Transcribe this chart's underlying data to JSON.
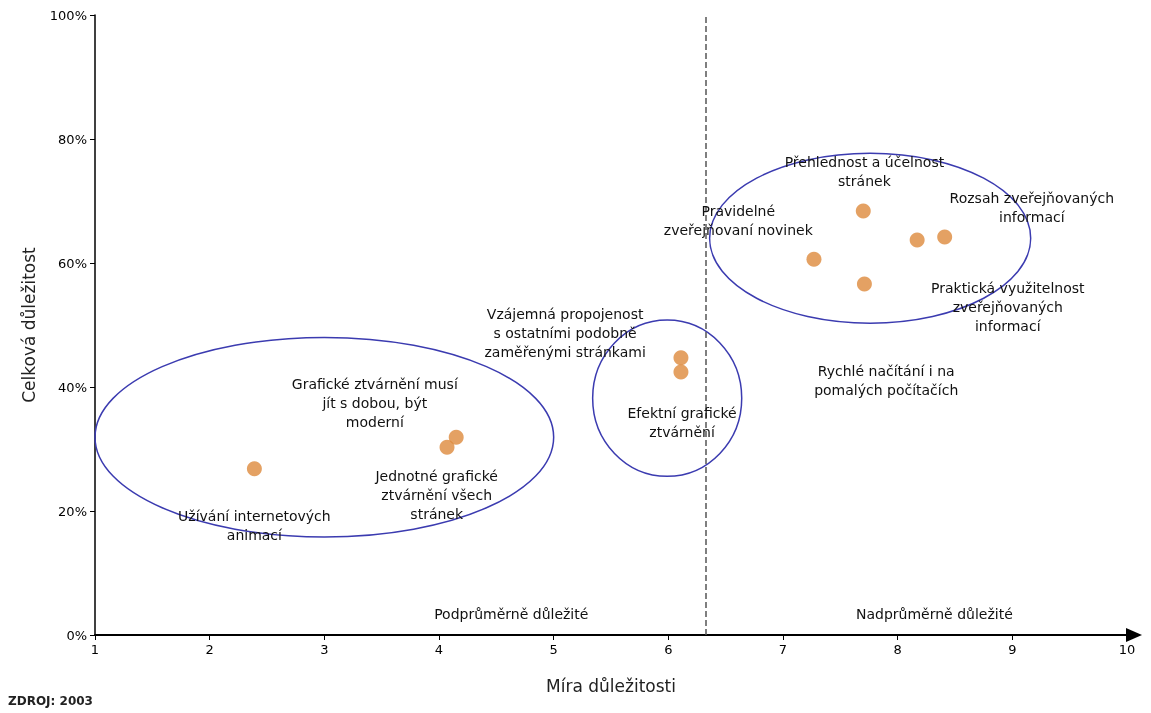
{
  "chart_data": {
    "type": "scatter",
    "xlabel": "Míra důležitosti",
    "ylabel": "Celková důležitost",
    "x": [
      2.39,
      4.07,
      4.15,
      6.11,
      6.11,
      7.27,
      7.7,
      8.17,
      8.41,
      7.71
    ],
    "series": [
      {
        "color": "#dd8a3c",
        "values": [
          26.8,
          30.3,
          31.9,
          44.7,
          42.4,
          60.6,
          68.4,
          63.7,
          64.2,
          56.6
        ]
      }
    ],
    "xlim": [
      1,
      10
    ],
    "xticks": [
      1,
      2,
      3,
      4,
      5,
      6,
      7,
      8,
      9,
      10
    ],
    "ylim": [
      0,
      100
    ],
    "yticks": [
      {
        "value": 0,
        "label": "0%"
      },
      {
        "value": 20,
        "label": "20%"
      },
      {
        "value": 40,
        "label": "40%"
      },
      {
        "value": 60,
        "label": "60%"
      },
      {
        "value": 80,
        "label": "80%"
      },
      {
        "value": 100,
        "label": "100%"
      }
    ],
    "ref_lines": [
      {
        "axis": "x",
        "value": 6.33,
        "label": null,
        "color": "#555555",
        "line_style": "dashed"
      }
    ],
    "annotations": [
      "Přehlednost a účelnost\nstránek",
      "Rozsah zveřejňovaných\ninformací",
      "Pravidelné\nzveřejňovaní novinek",
      "Praktická využitelnost\nzveřejňovaných\ninformací",
      "Rychlé načítání i na\npomalých počítačích",
      "Vzájemná propojenost\ns ostatními podobně\nzaměřenými stránkami",
      "Efektní grafické\nztvárnění",
      "Grafické ztvárnění musí\njít s dobou, být\nmoderní",
      "Jednotné grafické\nztvárnění všech\nstránek",
      "Užívání internetových\nanimací",
      "Podprůměrně důležité",
      "Nadprůměrně důležité",
      "ZDROJ: 2003"
    ],
    "marker": "circle",
    "grid": false
  }
}
